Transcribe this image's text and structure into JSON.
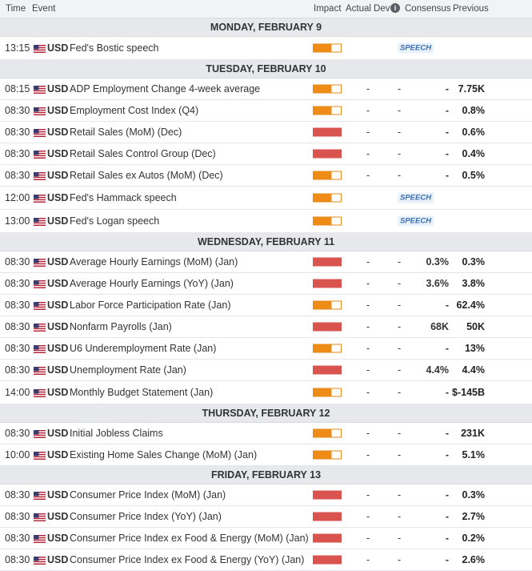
{
  "header": {
    "time": "Time",
    "event": "Event",
    "impact": "Impact",
    "actual": "Actual",
    "dev": "Dev",
    "info_icon": "i",
    "consensus": "Consensus",
    "previous": "Previous"
  },
  "colors": {
    "impact_medium": "#ef8c17",
    "impact_high": "#d9534f",
    "speech": "#3a6fb0"
  },
  "days": [
    {
      "title": "MONDAY, FEBRUARY 9",
      "events": [
        {
          "time": "13:15",
          "currency": "USD",
          "event": "Fed's Bostic speech",
          "impact": "medium",
          "actual": "",
          "dev": "",
          "consensus": "",
          "previous": "",
          "speech": "SPEECH"
        }
      ]
    },
    {
      "title": "TUESDAY, FEBRUARY 10",
      "events": [
        {
          "time": "08:15",
          "currency": "USD",
          "event": "ADP Employment Change 4-week average",
          "impact": "medium",
          "actual": "-",
          "dev": "-",
          "consensus": "-",
          "previous": "7.75K"
        },
        {
          "time": "08:30",
          "currency": "USD",
          "event": "Employment Cost Index (Q4)",
          "impact": "medium",
          "actual": "-",
          "dev": "-",
          "consensus": "-",
          "previous": "0.8%"
        },
        {
          "time": "08:30",
          "currency": "USD",
          "event": "Retail Sales (MoM) (Dec)",
          "impact": "high",
          "actual": "-",
          "dev": "-",
          "consensus": "-",
          "previous": "0.6%"
        },
        {
          "time": "08:30",
          "currency": "USD",
          "event": "Retail Sales Control Group (Dec)",
          "impact": "high",
          "actual": "-",
          "dev": "-",
          "consensus": "-",
          "previous": "0.4%"
        },
        {
          "time": "08:30",
          "currency": "USD",
          "event": "Retail Sales ex Autos (MoM) (Dec)",
          "impact": "medium",
          "actual": "-",
          "dev": "-",
          "consensus": "-",
          "previous": "0.5%"
        },
        {
          "time": "12:00",
          "currency": "USD",
          "event": "Fed's Hammack speech",
          "impact": "medium",
          "actual": "",
          "dev": "",
          "consensus": "",
          "previous": "",
          "speech": "SPEECH"
        },
        {
          "time": "13:00",
          "currency": "USD",
          "event": "Fed's Logan speech",
          "impact": "medium",
          "actual": "",
          "dev": "",
          "consensus": "",
          "previous": "",
          "speech": "SPEECH"
        }
      ]
    },
    {
      "title": "WEDNESDAY, FEBRUARY 11",
      "events": [
        {
          "time": "08:30",
          "currency": "USD",
          "event": "Average Hourly Earnings (MoM) (Jan)",
          "impact": "high",
          "actual": "-",
          "dev": "-",
          "consensus": "0.3%",
          "previous": "0.3%"
        },
        {
          "time": "08:30",
          "currency": "USD",
          "event": "Average Hourly Earnings (YoY) (Jan)",
          "impact": "high",
          "actual": "-",
          "dev": "-",
          "consensus": "3.6%",
          "previous": "3.8%"
        },
        {
          "time": "08:30",
          "currency": "USD",
          "event": "Labor Force Participation Rate (Jan)",
          "impact": "medium",
          "actual": "-",
          "dev": "-",
          "consensus": "-",
          "previous": "62.4%"
        },
        {
          "time": "08:30",
          "currency": "USD",
          "event": "Nonfarm Payrolls (Jan)",
          "impact": "high",
          "actual": "-",
          "dev": "-",
          "consensus": "68K",
          "previous": "50K"
        },
        {
          "time": "08:30",
          "currency": "USD",
          "event": "U6 Underemployment Rate (Jan)",
          "impact": "medium",
          "actual": "-",
          "dev": "-",
          "consensus": "-",
          "previous": "13%"
        },
        {
          "time": "08:30",
          "currency": "USD",
          "event": "Unemployment Rate (Jan)",
          "impact": "high",
          "actual": "-",
          "dev": "-",
          "consensus": "4.4%",
          "previous": "4.4%"
        },
        {
          "time": "14:00",
          "currency": "USD",
          "event": "Monthly Budget Statement (Jan)",
          "impact": "medium",
          "actual": "-",
          "dev": "-",
          "consensus": "-",
          "previous": "$-145B"
        }
      ]
    },
    {
      "title": "THURSDAY, FEBRUARY 12",
      "events": [
        {
          "time": "08:30",
          "currency": "USD",
          "event": "Initial Jobless Claims",
          "impact": "medium",
          "actual": "-",
          "dev": "-",
          "consensus": "-",
          "previous": "231K"
        },
        {
          "time": "10:00",
          "currency": "USD",
          "event": "Existing Home Sales Change (MoM) (Jan)",
          "impact": "medium",
          "actual": "-",
          "dev": "-",
          "consensus": "-",
          "previous": "5.1%"
        }
      ]
    },
    {
      "title": "FRIDAY, FEBRUARY 13",
      "events": [
        {
          "time": "08:30",
          "currency": "USD",
          "event": "Consumer Price Index (MoM) (Jan)",
          "impact": "high",
          "actual": "-",
          "dev": "-",
          "consensus": "-",
          "previous": "0.3%"
        },
        {
          "time": "08:30",
          "currency": "USD",
          "event": "Consumer Price Index (YoY) (Jan)",
          "impact": "high",
          "actual": "-",
          "dev": "-",
          "consensus": "-",
          "previous": "2.7%"
        },
        {
          "time": "08:30",
          "currency": "USD",
          "event": "Consumer Price Index ex Food & Energy (MoM) (Jan)",
          "impact": "high",
          "actual": "-",
          "dev": "-",
          "consensus": "-",
          "previous": "0.2%"
        },
        {
          "time": "08:30",
          "currency": "USD",
          "event": "Consumer Price Index ex Food & Energy (YoY) (Jan)",
          "impact": "high",
          "actual": "-",
          "dev": "-",
          "consensus": "-",
          "previous": "2.6%"
        }
      ]
    }
  ]
}
